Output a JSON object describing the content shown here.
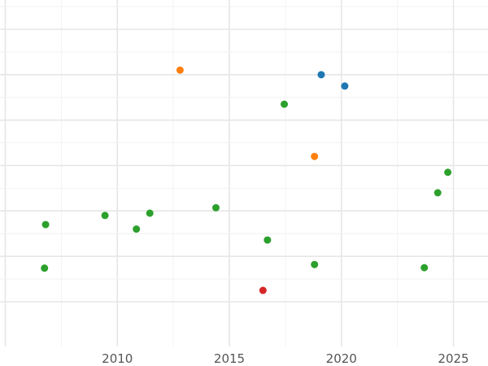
{
  "chart_data": {
    "type": "scatter",
    "title": "",
    "xlabel": "",
    "ylabel": "",
    "x_ticks": [
      2010,
      2015,
      2020,
      2025
    ],
    "xlim": [
      2005,
      2026.5
    ],
    "ylim": [
      -1,
      6.5
    ],
    "y_gridlines": [
      0,
      1,
      2,
      3,
      4,
      5,
      6
    ],
    "grid": true,
    "legend": "none",
    "colors": {
      "blue": "#1f77b4",
      "orange": "#ff7f0e",
      "green": "#2ca02c",
      "red": "#d62728"
    },
    "points": [
      {
        "x": 2019.1,
        "y": 5.0,
        "color": "blue"
      },
      {
        "x": 2020.15,
        "y": 4.75,
        "color": "blue"
      },
      {
        "x": 2012.8,
        "y": 5.1,
        "color": "orange"
      },
      {
        "x": 2018.8,
        "y": 3.2,
        "color": "orange"
      },
      {
        "x": 2017.45,
        "y": 4.35,
        "color": "green"
      },
      {
        "x": 2024.75,
        "y": 2.85,
        "color": "green"
      },
      {
        "x": 2024.3,
        "y": 2.4,
        "color": "green"
      },
      {
        "x": 2006.8,
        "y": 1.7,
        "color": "green"
      },
      {
        "x": 2009.45,
        "y": 1.9,
        "color": "green"
      },
      {
        "x": 2010.85,
        "y": 1.6,
        "color": "green"
      },
      {
        "x": 2011.45,
        "y": 1.95,
        "color": "green"
      },
      {
        "x": 2014.4,
        "y": 2.07,
        "color": "green"
      },
      {
        "x": 2016.7,
        "y": 1.36,
        "color": "green"
      },
      {
        "x": 2006.75,
        "y": 0.74,
        "color": "green"
      },
      {
        "x": 2018.8,
        "y": 0.82,
        "color": "green"
      },
      {
        "x": 2023.7,
        "y": 0.75,
        "color": "green"
      },
      {
        "x": 2016.5,
        "y": 0.25,
        "color": "red"
      }
    ]
  }
}
